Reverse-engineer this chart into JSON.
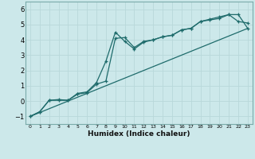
{
  "xlabel": "Humidex (Indice chaleur)",
  "ylabel": "",
  "xlim": [
    -0.5,
    23.5
  ],
  "ylim": [
    -1.5,
    6.5
  ],
  "yticks": [
    -1,
    0,
    1,
    2,
    3,
    4,
    5,
    6
  ],
  "xticks": [
    0,
    1,
    2,
    3,
    4,
    5,
    6,
    7,
    8,
    9,
    10,
    11,
    12,
    13,
    14,
    15,
    16,
    17,
    18,
    19,
    20,
    21,
    22,
    23
  ],
  "bg_color": "#cce8ea",
  "line_color": "#1e6b6b",
  "grid_color": "#b8d8da",
  "line1_x": [
    0,
    1,
    2,
    3,
    4,
    5,
    6,
    7,
    8,
    9,
    10,
    11,
    12,
    13,
    14,
    15,
    16,
    17,
    18,
    19,
    20,
    21,
    22,
    23
  ],
  "line1_y": [
    -1.0,
    -0.7,
    0.05,
    0.05,
    0.05,
    0.45,
    0.55,
    1.1,
    1.3,
    4.1,
    4.15,
    3.5,
    3.9,
    4.0,
    4.2,
    4.3,
    4.65,
    4.75,
    5.2,
    5.35,
    5.5,
    5.65,
    5.2,
    5.1
  ],
  "line2_x": [
    0,
    1,
    2,
    3,
    4,
    5,
    6,
    7,
    8,
    9,
    10,
    11,
    12,
    13,
    14,
    15,
    16,
    17,
    18,
    19,
    20,
    21,
    22,
    23
  ],
  "line2_y": [
    -1.0,
    -0.7,
    0.05,
    0.1,
    0.05,
    0.5,
    0.6,
    1.2,
    2.6,
    4.5,
    3.9,
    3.4,
    3.85,
    4.0,
    4.2,
    4.3,
    4.65,
    4.75,
    5.2,
    5.3,
    5.4,
    5.65,
    5.65,
    4.75
  ],
  "line3_x": [
    0,
    23
  ],
  "line3_y": [
    -1.0,
    4.75
  ]
}
